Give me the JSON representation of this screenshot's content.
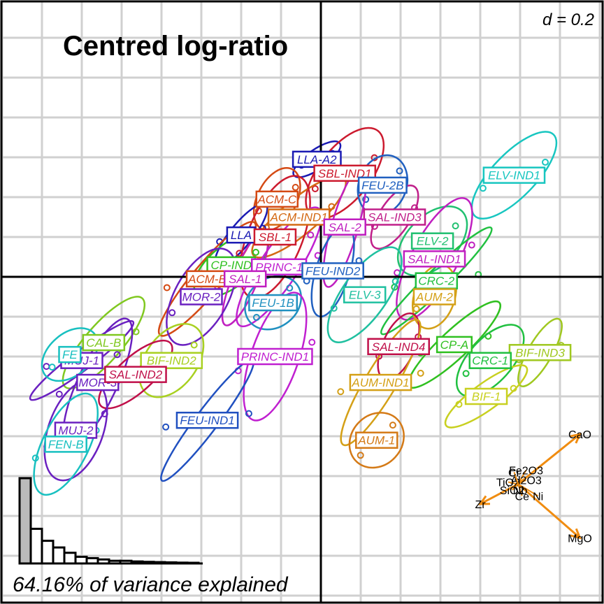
{
  "chart_data": {
    "type": "scatter",
    "title": "Centred log-ratio",
    "grid_scale": "d = 0.2",
    "caption": "64.16% of variance explained",
    "grid": true,
    "xlim": [
      -1.58,
      1.38
    ],
    "ylim": [
      -1.44,
      1.36
    ],
    "groups": [
      {
        "label": "LLA-A2",
        "color": "#1a1ab3",
        "x": -0.02,
        "y": 0.59
      },
      {
        "label": "SBL-IND1",
        "color": "#cc1a2e",
        "x": 0.12,
        "y": 0.52
      },
      {
        "label": "FEU-2B",
        "color": "#2060c0",
        "x": 0.31,
        "y": 0.46
      },
      {
        "label": "ELV-IND1",
        "color": "#18c6c0",
        "x": 0.97,
        "y": 0.51
      },
      {
        "label": "ACM-C",
        "color": "#d44a14",
        "x": -0.22,
        "y": 0.39
      },
      {
        "label": "ACM-IND1",
        "color": "#d46a14",
        "x": -0.11,
        "y": 0.3
      },
      {
        "label": "SAL-IND3",
        "color": "#c01f8a",
        "x": 0.37,
        "y": 0.3
      },
      {
        "label": "SAL-2",
        "color": "#c01fc0",
        "x": 0.12,
        "y": 0.25
      },
      {
        "label": "LLA",
        "color": "#1a1ab3",
        "x": -0.4,
        "y": 0.21
      },
      {
        "label": "SBL-1",
        "color": "#cc1a2e",
        "x": -0.23,
        "y": 0.2
      },
      {
        "label": "ELV-2",
        "color": "#20c070",
        "x": 0.56,
        "y": 0.18
      },
      {
        "label": "SAL-IND1",
        "color": "#c01fc0",
        "x": 0.57,
        "y": 0.09
      },
      {
        "label": "CP-IND",
        "color": "#30c020",
        "x": -0.45,
        "y": 0.06
      },
      {
        "label": "PRINC-1",
        "color": "#c020d0",
        "x": -0.21,
        "y": 0.05
      },
      {
        "label": "FEU-IND2",
        "color": "#2060c0",
        "x": 0.06,
        "y": 0.03
      },
      {
        "label": "ACM-B",
        "color": "#d44a14",
        "x": -0.57,
        "y": -0.01
      },
      {
        "label": "SAL-1",
        "color": "#c01fc0",
        "x": -0.38,
        "y": -0.01
      },
      {
        "label": "CRC-2",
        "color": "#20c040",
        "x": 0.58,
        "y": -0.02
      },
      {
        "label": "MOR-2",
        "color": "#6a20c0",
        "x": -0.6,
        "y": -0.1
      },
      {
        "label": "FEU-1B",
        "color": "#2090c0",
        "x": -0.24,
        "y": -0.13
      },
      {
        "label": "ELV-3",
        "color": "#20c0a0",
        "x": 0.22,
        "y": -0.09
      },
      {
        "label": "AUM-2",
        "color": "#d4a017",
        "x": 0.57,
        "y": -0.1
      },
      {
        "label": "CAL-B",
        "color": "#80c820",
        "x": -1.09,
        "y": -0.33
      },
      {
        "label": "SAL-IND4",
        "color": "#c0104a",
        "x": 0.39,
        "y": -0.35
      },
      {
        "label": "CP-A",
        "color": "#30c020",
        "x": 0.67,
        "y": -0.34
      },
      {
        "label": "BIF-IND3",
        "color": "#a0c820",
        "x": 1.1,
        "y": -0.38
      },
      {
        "label": "MUJ-1",
        "color": "#6a20c0",
        "x": -1.2,
        "y": -0.42
      },
      {
        "label": "BIF-IND2",
        "color": "#a8d020",
        "x": -0.75,
        "y": -0.42
      },
      {
        "label": "PRINC-IND1",
        "color": "#c020d0",
        "x": -0.23,
        "y": -0.4
      },
      {
        "label": "CRC-1",
        "color": "#20c040",
        "x": 0.85,
        "y": -0.42
      },
      {
        "label": "MOR-3",
        "color": "#6a20c0",
        "x": -1.12,
        "y": -0.53
      },
      {
        "label": "SAL-IND2",
        "color": "#c0104a",
        "x": -0.93,
        "y": -0.49
      },
      {
        "label": "AUM-IND1",
        "color": "#d4a017",
        "x": 0.3,
        "y": -0.53
      },
      {
        "label": "BIF-1",
        "color": "#c8d020",
        "x": 0.83,
        "y": -0.6
      },
      {
        "label": "FEU-IND1",
        "color": "#2050c0",
        "x": -0.57,
        "y": -0.72
      },
      {
        "label": "MUJ-2",
        "color": "#6a20c0",
        "x": -1.23,
        "y": -0.77
      },
      {
        "label": "AUM-1",
        "color": "#d47a17",
        "x": 0.28,
        "y": -0.82
      },
      {
        "label": "FEN-B",
        "color": "#18c0c0",
        "x": -1.28,
        "y": -0.84
      },
      {
        "label": "FE",
        "color": "#18c0c0",
        "x": -1.26,
        "y": -0.39
      }
    ],
    "variables": [
      {
        "label": "CaO",
        "x": 1.3,
        "y": -0.79
      },
      {
        "label": "MgO",
        "x": 1.3,
        "y": -1.31
      },
      {
        "label": "Zr",
        "x": 0.8,
        "y": -1.14
      },
      {
        "label": "Ce",
        "x": 1.01,
        "y": -1.1
      },
      {
        "label": "Ni",
        "x": 1.09,
        "y": -1.1
      },
      {
        "label": "Fe2O3",
        "x": 1.03,
        "y": -0.97
      },
      {
        "label": "Al2O3",
        "x": 1.03,
        "y": -1.02
      },
      {
        "label": "TiO2",
        "x": 0.94,
        "y": -1.03
      },
      {
        "label": "SiO2",
        "x": 0.96,
        "y": -1.07
      },
      {
        "label": "Cr",
        "x": 0.97,
        "y": -0.98
      },
      {
        "label": "Nb",
        "x": 1.0,
        "y": -1.07
      }
    ],
    "scree": [
      0.64,
      0.26,
      0.17,
      0.12,
      0.08,
      0.05,
      0.04,
      0.03,
      0.02,
      0.02,
      0.015,
      0.012,
      0.01,
      0.008,
      0.006,
      0.005
    ]
  }
}
